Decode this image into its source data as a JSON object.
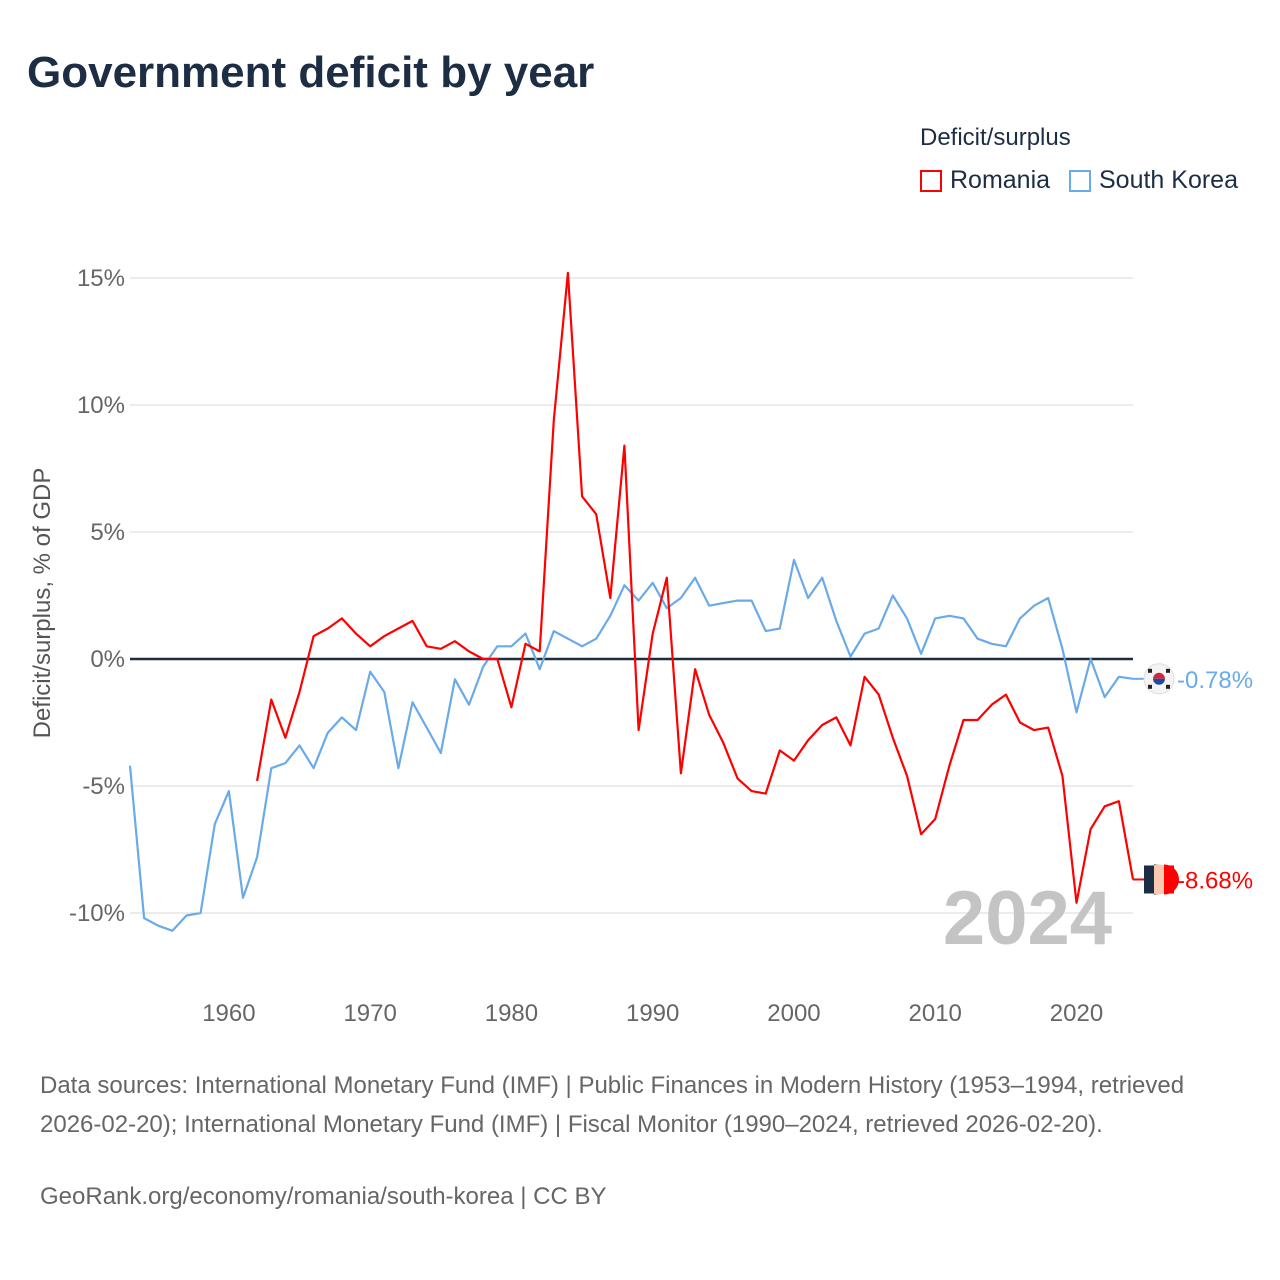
{
  "title": "Government deficit by year",
  "legend": {
    "title": "Deficit/surplus",
    "items": [
      {
        "name": "Romania",
        "color": "#ff0000"
      },
      {
        "name": "South Korea",
        "color": "#6aaae8"
      }
    ]
  },
  "sources": "Data sources: International Monetary Fund (IMF) | Public Finances in Modern History (1953–1994, retrieved 2026-02-20); International Monetary Fund (IMF) | Fiscal Monitor (1990–2024, retrieved 2026-02-20).",
  "credit": "GeoRank.org/economy/romania/south-korea | CC BY",
  "chart_data": {
    "type": "line",
    "title": "Government deficit by year",
    "xlabel": "",
    "ylabel": "Deficit/surplus, % of GDP",
    "xlim": [
      1953,
      2024
    ],
    "ylim": [
      -12.5,
      16
    ],
    "yticks": [
      15,
      10,
      5,
      0,
      -5,
      -10
    ],
    "ytick_labels": [
      "15%",
      "10%",
      "5%",
      "0%",
      "-5%",
      "-10%"
    ],
    "xticks": [
      1960,
      1970,
      1980,
      1990,
      2000,
      2010,
      2020
    ],
    "xtick_labels": [
      "1960",
      "1970",
      "1980",
      "1990",
      "2000",
      "2010",
      "2020"
    ],
    "year_watermark": "2024",
    "series": [
      {
        "name": "Romania",
        "color": "#ff0000",
        "start_year": 1962,
        "end_label": "-8.68%",
        "values": [
          -4.8,
          -1.6,
          -3.1,
          -1.3,
          0.9,
          1.2,
          1.6,
          1.0,
          0.5,
          0.9,
          1.2,
          1.5,
          0.5,
          0.4,
          0.7,
          0.3,
          0.0,
          0.0,
          -1.9,
          0.6,
          0.3,
          9.4,
          15.2,
          6.4,
          5.7,
          2.4,
          8.4,
          -2.8,
          1.0,
          3.2,
          -4.5,
          -0.4,
          -2.2,
          -3.3,
          -4.7,
          -5.2,
          -5.3,
          -3.6,
          -4.0,
          -3.2,
          -2.6,
          -2.3,
          -3.4,
          -0.7,
          -1.4,
          -3.1,
          -4.6,
          -6.9,
          -6.3,
          -4.2,
          -2.4,
          -2.4,
          -1.8,
          -1.4,
          -2.5,
          -2.8,
          -2.7,
          -4.6,
          -9.6,
          -6.7,
          -5.8,
          -5.6,
          -8.68
        ]
      },
      {
        "name": "South Korea",
        "color": "#6aaae8",
        "start_year": 1953,
        "end_label": "-0.78%",
        "values": [
          -4.2,
          -10.2,
          -10.5,
          -10.7,
          -10.1,
          -10.0,
          -6.5,
          -5.2,
          -9.4,
          -7.8,
          -4.3,
          -4.1,
          -3.4,
          -4.3,
          -2.9,
          -2.3,
          -2.8,
          -0.5,
          -1.3,
          -4.3,
          -1.7,
          -2.7,
          -3.7,
          -0.8,
          -1.8,
          -0.3,
          0.5,
          0.5,
          1.0,
          -0.4,
          1.1,
          0.8,
          0.5,
          0.8,
          1.7,
          2.9,
          2.3,
          3.0,
          2.0,
          2.4,
          3.2,
          2.1,
          2.2,
          2.3,
          2.3,
          1.1,
          1.2,
          3.9,
          2.4,
          3.2,
          1.5,
          0.1,
          1.0,
          1.2,
          2.5,
          1.6,
          0.2,
          1.6,
          1.7,
          1.6,
          0.8,
          0.6,
          0.5,
          1.6,
          2.1,
          2.4,
          0.4,
          -2.1,
          0.0,
          -1.5,
          -0.7,
          -0.78
        ]
      }
    ]
  }
}
